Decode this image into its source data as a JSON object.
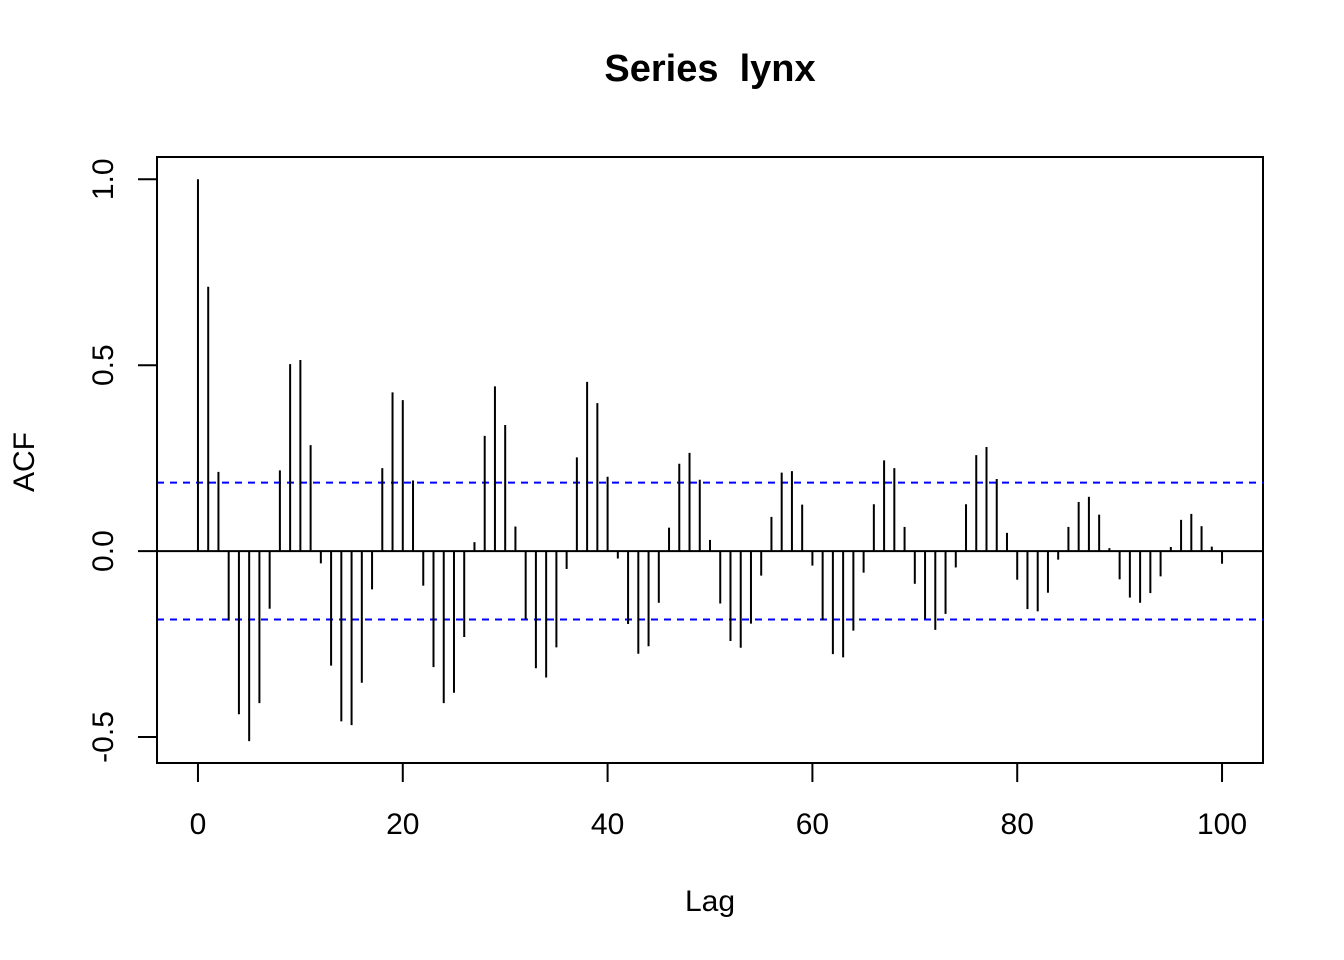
{
  "chart_data": {
    "type": "bar",
    "title": "Series  lynx",
    "xlabel": "Lag",
    "ylabel": "ACF",
    "xlim": [
      -4,
      104
    ],
    "ylim": [
      -0.57,
      1.06
    ],
    "x_ticks": [
      0,
      20,
      40,
      60,
      80,
      100
    ],
    "x_tick_labels": [
      "0",
      "20",
      "40",
      "60",
      "80",
      "100"
    ],
    "y_ticks": [
      -0.5,
      0.0,
      0.5,
      1.0
    ],
    "y_tick_labels": [
      "-0.5",
      "0.0",
      "0.5",
      "1.0"
    ],
    "confidence_bound": 0.184,
    "bar_color": "#000000",
    "ci_color": "#0000ff",
    "lags": [
      0,
      1,
      2,
      3,
      4,
      5,
      6,
      7,
      8,
      9,
      10,
      11,
      12,
      13,
      14,
      15,
      16,
      17,
      18,
      19,
      20,
      21,
      22,
      23,
      24,
      25,
      26,
      27,
      28,
      29,
      30,
      31,
      32,
      33,
      34,
      35,
      36,
      37,
      38,
      39,
      40,
      41,
      42,
      43,
      44,
      45,
      46,
      47,
      48,
      49,
      50,
      51,
      52,
      53,
      54,
      55,
      56,
      57,
      58,
      59,
      60,
      61,
      62,
      63,
      64,
      65,
      66,
      67,
      68,
      69,
      70,
      71,
      72,
      73,
      74,
      75,
      76,
      77,
      78,
      79,
      80,
      81,
      82,
      83,
      84,
      85,
      86,
      87,
      88,
      89,
      90,
      91,
      92,
      93,
      94,
      95,
      96,
      97,
      98,
      99,
      100
    ],
    "acf": [
      1.0,
      0.711,
      0.213,
      -0.187,
      -0.439,
      -0.511,
      -0.409,
      -0.155,
      0.217,
      0.503,
      0.514,
      0.285,
      -0.033,
      -0.308,
      -0.458,
      -0.468,
      -0.354,
      -0.103,
      0.223,
      0.427,
      0.406,
      0.19,
      -0.093,
      -0.312,
      -0.409,
      -0.381,
      -0.231,
      0.024,
      0.31,
      0.443,
      0.339,
      0.066,
      -0.183,
      -0.315,
      -0.34,
      -0.259,
      -0.048,
      0.252,
      0.455,
      0.398,
      0.2,
      -0.02,
      -0.196,
      -0.276,
      -0.256,
      -0.139,
      0.063,
      0.235,
      0.264,
      0.192,
      0.03,
      -0.141,
      -0.242,
      -0.26,
      -0.195,
      -0.066,
      0.092,
      0.211,
      0.215,
      0.125,
      -0.039,
      -0.186,
      -0.277,
      -0.286,
      -0.214,
      -0.058,
      0.126,
      0.244,
      0.223,
      0.065,
      -0.088,
      -0.182,
      -0.212,
      -0.169,
      -0.044,
      0.126,
      0.258,
      0.28,
      0.194,
      0.049,
      -0.077,
      -0.156,
      -0.162,
      -0.112,
      -0.023,
      0.065,
      0.132,
      0.146,
      0.098,
      0.008,
      -0.076,
      -0.125,
      -0.139,
      -0.113,
      -0.068,
      0.011,
      0.084,
      0.1,
      0.067,
      0.012,
      -0.034
    ]
  }
}
